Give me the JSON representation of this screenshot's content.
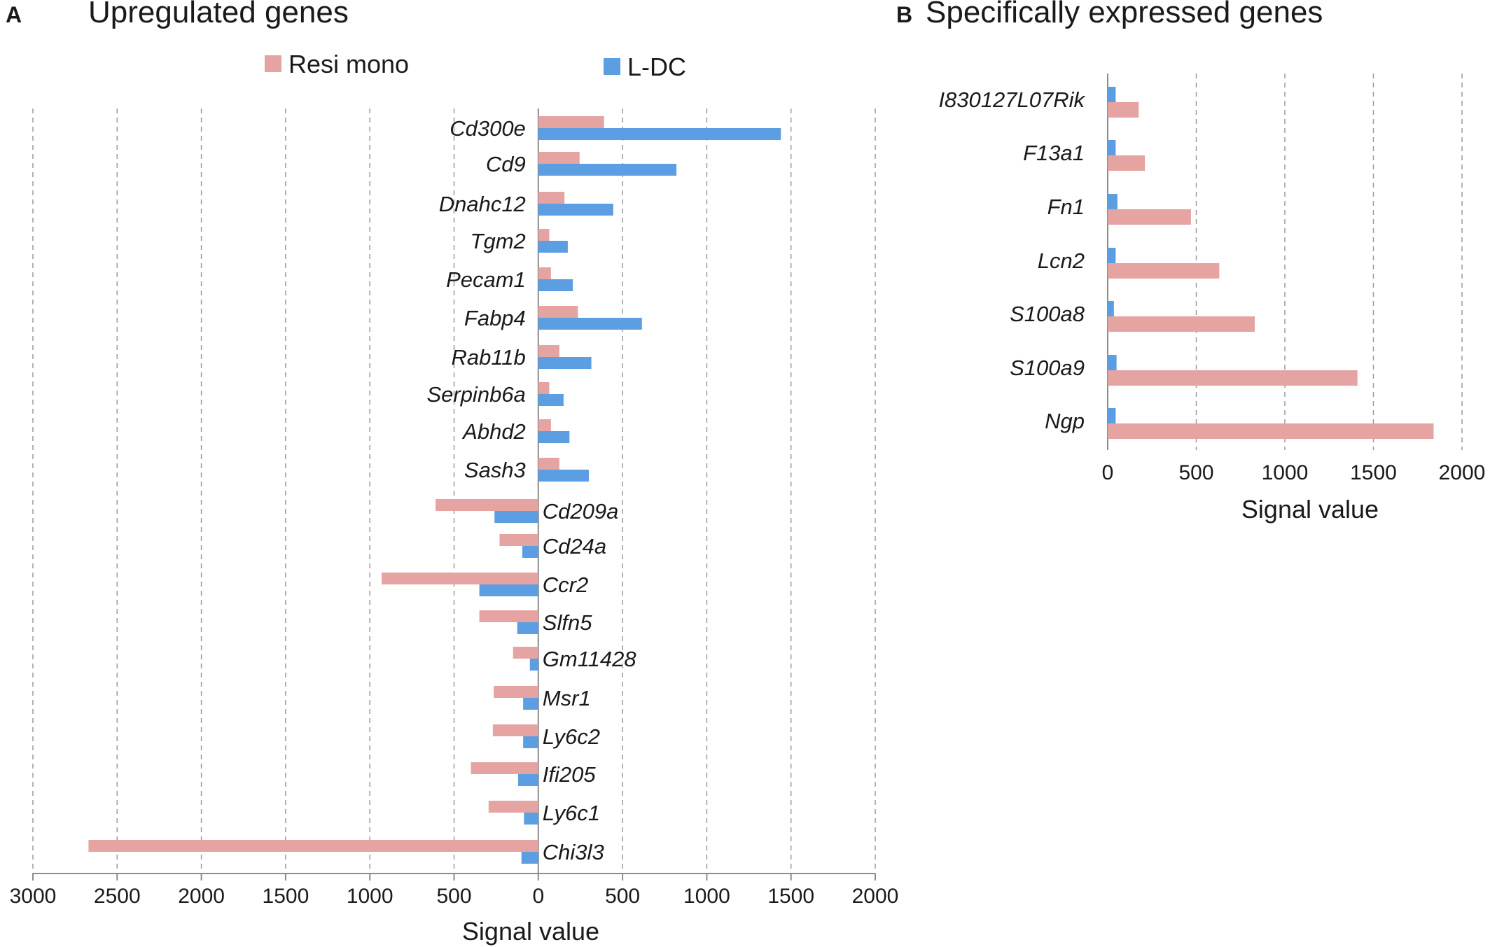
{
  "colors": {
    "resi_mono": "#e5a3a1",
    "l_dc": "#5b9ee1"
  },
  "chart_data": [
    {
      "panel": "A",
      "title": "Upregulated genes",
      "type": "bar",
      "orientation": "horizontal",
      "legend": [
        "Resi mono",
        "L-DC"
      ],
      "legend_position": "top",
      "categories": [
        "Cd300e",
        "Cd9",
        "Dnahc12",
        "Tgm2",
        "Pecam1",
        "Fabp4",
        "Rab11b",
        "Serpinb6a",
        "Abhd2",
        "Sash3",
        "Cd209a",
        "Cd24a",
        "Ccr2",
        "Slfn5",
        "Gm11428",
        "Msr1",
        "Ly6c2",
        "Ifi205",
        "Ly6c1",
        "Chi3l3"
      ],
      "series": [
        {
          "name": "Resi mono",
          "values": [
            390,
            245,
            155,
            65,
            75,
            235,
            125,
            65,
            75,
            125,
            -610,
            -230,
            -930,
            -350,
            -150,
            -265,
            -270,
            -400,
            -295,
            -2670
          ]
        },
        {
          "name": "L-DC",
          "values": [
            1440,
            820,
            445,
            175,
            205,
            615,
            315,
            150,
            185,
            300,
            -260,
            -95,
            -350,
            -125,
            -50,
            -90,
            -90,
            -120,
            -85,
            -100
          ]
        }
      ],
      "xlim": [
        -3000,
        2000
      ],
      "xticks": [
        -3000,
        -2500,
        -2000,
        -1500,
        -1000,
        -500,
        0,
        500,
        1000,
        1500,
        2000
      ],
      "xtick_labels": [
        "3000",
        "2500",
        "2000",
        "1500",
        "1000",
        "500",
        "0",
        "500",
        "1000",
        "1500",
        "2000"
      ],
      "xlabel": "Signal value",
      "grid": true
    },
    {
      "panel": "B",
      "title": "Specifically expressed genes",
      "type": "bar",
      "orientation": "horizontal",
      "categories": [
        "I830127L07Rik",
        "F13a1",
        "Fn1",
        "Lcn2",
        "S100a8",
        "S100a9",
        "Ngp"
      ],
      "series": [
        {
          "name": "Resi mono",
          "values": [
            175,
            210,
            470,
            630,
            830,
            1410,
            1840
          ]
        },
        {
          "name": "L-DC",
          "values": [
            45,
            45,
            55,
            45,
            35,
            50,
            45
          ]
        }
      ],
      "xlim": [
        0,
        2000
      ],
      "xticks": [
        0,
        500,
        1000,
        1500,
        2000
      ],
      "xtick_labels": [
        "0",
        "500",
        "1000",
        "1500",
        "2000"
      ],
      "xlabel": "Signal value",
      "grid": true
    }
  ]
}
